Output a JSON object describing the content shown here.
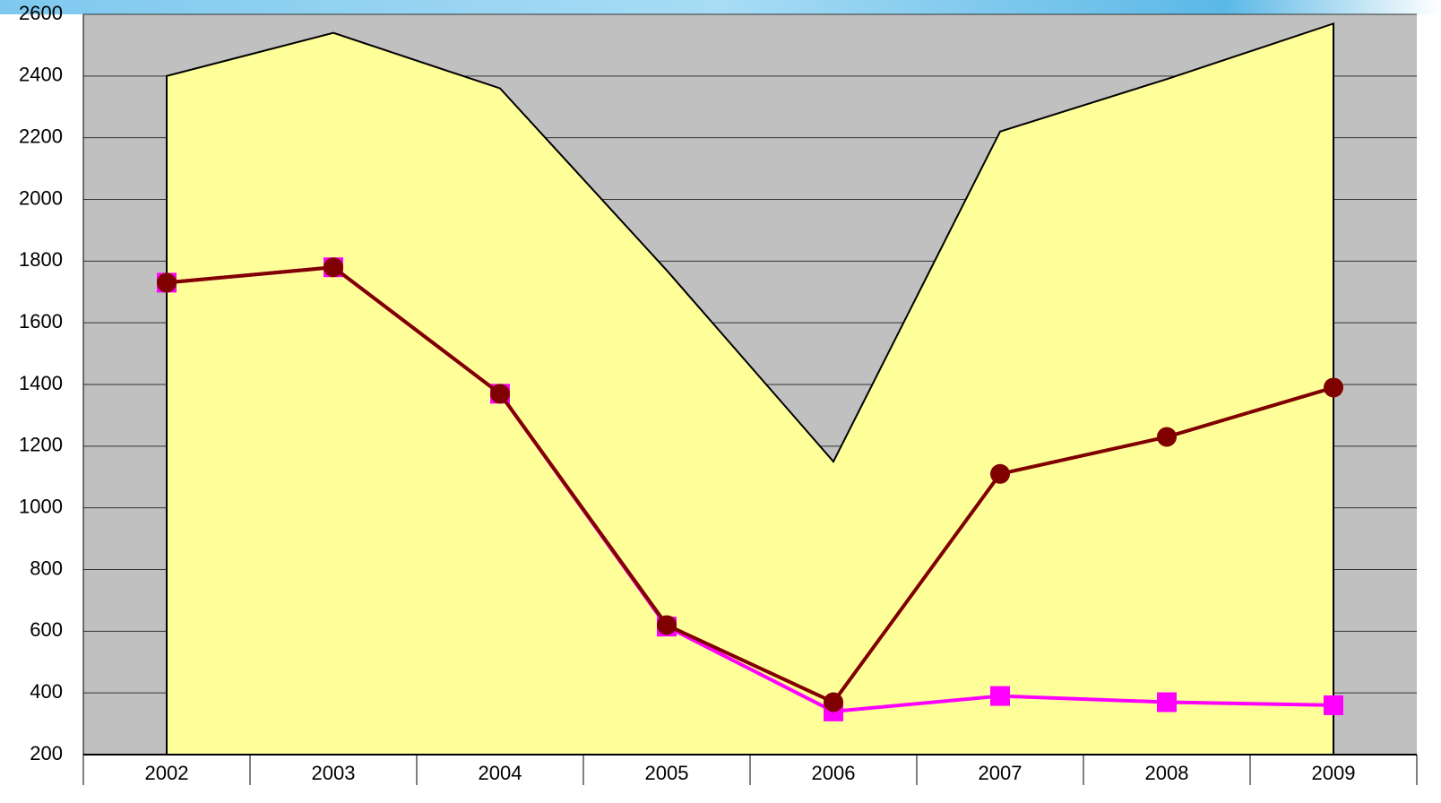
{
  "chart_data": {
    "type": "line",
    "categories": [
      "2002",
      "2003",
      "2004",
      "2005",
      "2006",
      "2007",
      "2008",
      "2009"
    ],
    "series": [
      {
        "type": "area",
        "color": "#ffff99",
        "values": [
          2400,
          2540,
          2360,
          1770,
          1150,
          2220,
          2390,
          2570
        ]
      },
      {
        "type": "line",
        "marker": "square",
        "color": "#ff00ff",
        "values": [
          1730,
          1780,
          1370,
          615,
          340,
          390,
          370,
          360
        ]
      },
      {
        "type": "line",
        "marker": "circle",
        "color": "#800000",
        "values": [
          1730,
          1780,
          1370,
          620,
          370,
          1110,
          1230,
          1390
        ]
      }
    ],
    "ylim": [
      200,
      2600
    ],
    "yticks": [
      200,
      400,
      600,
      800,
      1000,
      1200,
      1400,
      1600,
      1800,
      2000,
      2200,
      2400,
      2600
    ],
    "grid": true,
    "plot_background": "#c0c0c0"
  }
}
